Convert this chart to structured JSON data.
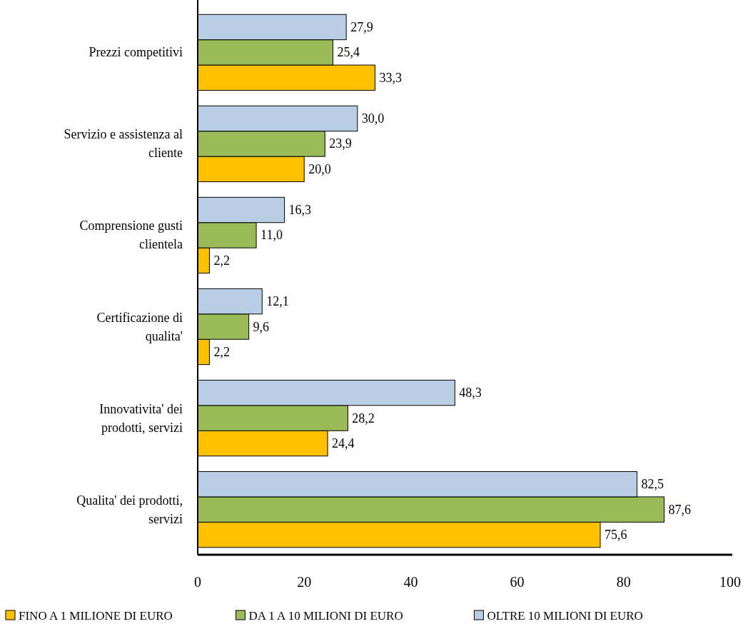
{
  "chart_data": {
    "type": "bar",
    "orientation": "horizontal",
    "categories": [
      "Prezzi competitivi",
      "Servizio e assistenza al cliente",
      "Comprensione gusti clientela",
      "Certificazione di qualita'",
      "Innovativita' dei prodotti, servizi",
      "Qualita' dei prodotti, servizi"
    ],
    "series": [
      {
        "name": "FINO A 1 MILIONE DI EURO",
        "color": "#ffc000",
        "values": [
          33.3,
          20.0,
          2.2,
          2.2,
          24.4,
          75.6
        ],
        "value_labels": [
          "33,3",
          "20,0",
          "2,2",
          "2,2",
          "24,4",
          "75,6"
        ]
      },
      {
        "name": "DA 1 A 10 MILIONI DI EURO",
        "color": "#9bbb59",
        "values": [
          25.4,
          23.9,
          11.0,
          9.6,
          28.2,
          87.6
        ],
        "value_labels": [
          "25,4",
          "23,9",
          "11,0",
          "9,6",
          "28,2",
          "87,6"
        ]
      },
      {
        "name": "OLTRE 10 MILIONI DI EURO",
        "color": "#b9cde5",
        "values": [
          27.9,
          30.0,
          16.3,
          12.1,
          48.3,
          82.5
        ],
        "value_labels": [
          "27,9",
          "30,0",
          "16,3",
          "12,1",
          "48,3",
          "82,5"
        ]
      }
    ],
    "xlim": [
      0,
      100
    ],
    "xticks": [
      0,
      20,
      40,
      60,
      80,
      100
    ],
    "grid": false,
    "legend": "bottom"
  }
}
